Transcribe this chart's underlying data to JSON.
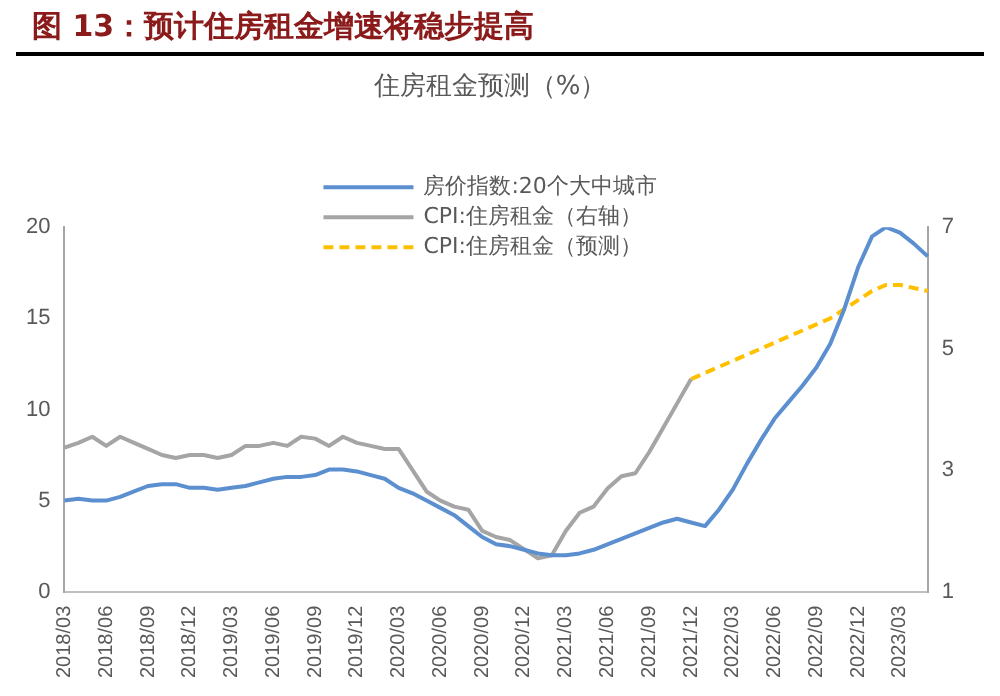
{
  "chart_data": {
    "type": "line",
    "title": "图 13：预计住房租金增速将稳步提高",
    "subtitle": "住房租金预测（%）",
    "categories": [
      "2018/03",
      null,
      null,
      "2018/06",
      null,
      null,
      "2018/09",
      null,
      null,
      "2018/12",
      null,
      null,
      "2019/03",
      null,
      null,
      "2019/06",
      null,
      null,
      "2019/09",
      null,
      null,
      "2019/12",
      null,
      null,
      "2020/03",
      null,
      null,
      "2020/06",
      null,
      null,
      "2020/09",
      null,
      null,
      "2020/12",
      null,
      null,
      "2021/03",
      null,
      null,
      "2021/06",
      null,
      null,
      "2021/09",
      null,
      null,
      "2021/12",
      null,
      null,
      "2022/03",
      null,
      null,
      "2022/06",
      null,
      null,
      "2022/09",
      null,
      null,
      "2022/12",
      null,
      null,
      "2023/03",
      null,
      null
    ],
    "series": [
      {
        "name": "房价指数:20个大中城市",
        "color": "#5b8fd0",
        "values": [
          5.0,
          5.1,
          5.0,
          5.0,
          5.2,
          5.5,
          5.8,
          5.9,
          5.9,
          5.7,
          5.7,
          5.6,
          5.7,
          5.8,
          6.0,
          6.2,
          6.3,
          6.3,
          6.4,
          6.7,
          6.7,
          6.6,
          6.4,
          6.2,
          5.7,
          5.4,
          5.0,
          4.6,
          4.2,
          3.6,
          3.0,
          2.6,
          2.5,
          2.3,
          2.1,
          2.0,
          2.0,
          2.1,
          2.3,
          2.6,
          2.9,
          3.2,
          3.5,
          3.8,
          4.0,
          3.8,
          3.6,
          4.5,
          5.6,
          7.0,
          8.3,
          9.5,
          10.4,
          11.3,
          12.3,
          13.6,
          15.5,
          17.8,
          19.5,
          20.0,
          19.7,
          19.1,
          18.4
        ]
      },
      {
        "name": "CPI:住房租金（右轴）",
        "color": "#a5a5a5",
        "axis": "y2",
        "values": [
          3.37,
          3.45,
          3.55,
          3.4,
          3.55,
          3.45,
          3.35,
          3.25,
          3.2,
          3.25,
          3.25,
          3.2,
          3.25,
          3.4,
          3.4,
          3.45,
          3.4,
          3.55,
          3.52,
          3.4,
          3.55,
          3.45,
          3.4,
          3.35,
          3.35,
          3.0,
          2.65,
          2.5,
          2.4,
          2.35,
          2.0,
          1.9,
          1.85,
          1.7,
          1.55,
          1.6,
          2.0,
          2.3,
          2.4,
          2.7,
          2.9,
          2.95,
          3.3,
          3.7,
          4.1,
          4.5,
          null,
          null,
          null,
          null,
          null,
          null,
          null,
          null,
          null,
          null,
          null,
          null,
          null,
          null,
          null,
          null,
          null
        ]
      },
      {
        "name": "CPI:住房租金（预测）",
        "color": "#ffc000",
        "axis": "y2",
        "line_style": "dashed",
        "values": [
          null,
          null,
          null,
          null,
          null,
          null,
          null,
          null,
          null,
          null,
          null,
          null,
          null,
          null,
          null,
          null,
          null,
          null,
          null,
          null,
          null,
          null,
          null,
          null,
          null,
          null,
          null,
          null,
          null,
          null,
          null,
          null,
          null,
          null,
          null,
          null,
          null,
          null,
          null,
          null,
          null,
          null,
          null,
          null,
          null,
          4.5,
          4.6,
          4.7,
          4.8,
          4.9,
          5.0,
          5.1,
          5.2,
          5.3,
          5.4,
          5.5,
          5.65,
          5.8,
          5.95,
          6.05,
          6.05,
          6.0,
          5.95
        ]
      }
    ],
    "ylim": [
      0,
      20
    ],
    "yticks": [
      0,
      5,
      10,
      15,
      20
    ],
    "y2lim": [
      1,
      7
    ],
    "y2ticks": [
      1,
      3,
      5,
      7
    ],
    "grid": false,
    "legend": "top",
    "marker": "none"
  }
}
